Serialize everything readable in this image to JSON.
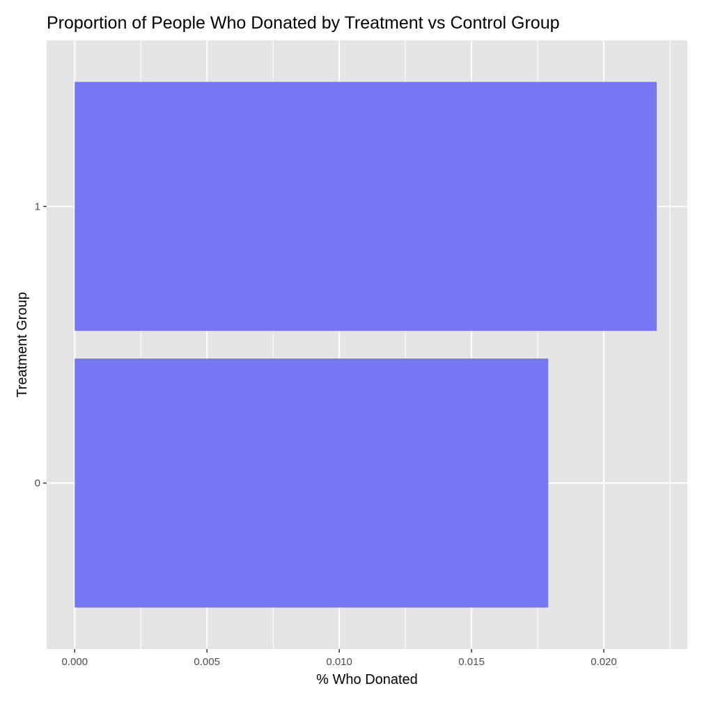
{
  "chart_data": {
    "type": "bar",
    "orientation": "horizontal",
    "title": "Proportion of People Who Donated by Treatment vs Control Group",
    "xlabel": "% Who Donated",
    "ylabel": "Treatment Group",
    "categories": [
      "0",
      "1"
    ],
    "values": [
      0.0179,
      0.022
    ],
    "xlim": [
      -0.00106,
      0.02316
    ],
    "x_ticks": [
      0.0,
      0.005,
      0.01,
      0.015,
      0.02
    ],
    "x_tick_labels": [
      "0.000",
      "0.005",
      "0.010",
      "0.015",
      "0.020"
    ],
    "grid": true,
    "legend": "none",
    "colors": {
      "bar": "#7373F3",
      "panel_background": "#E5E5E5",
      "grid": "#FFFFFF"
    }
  }
}
